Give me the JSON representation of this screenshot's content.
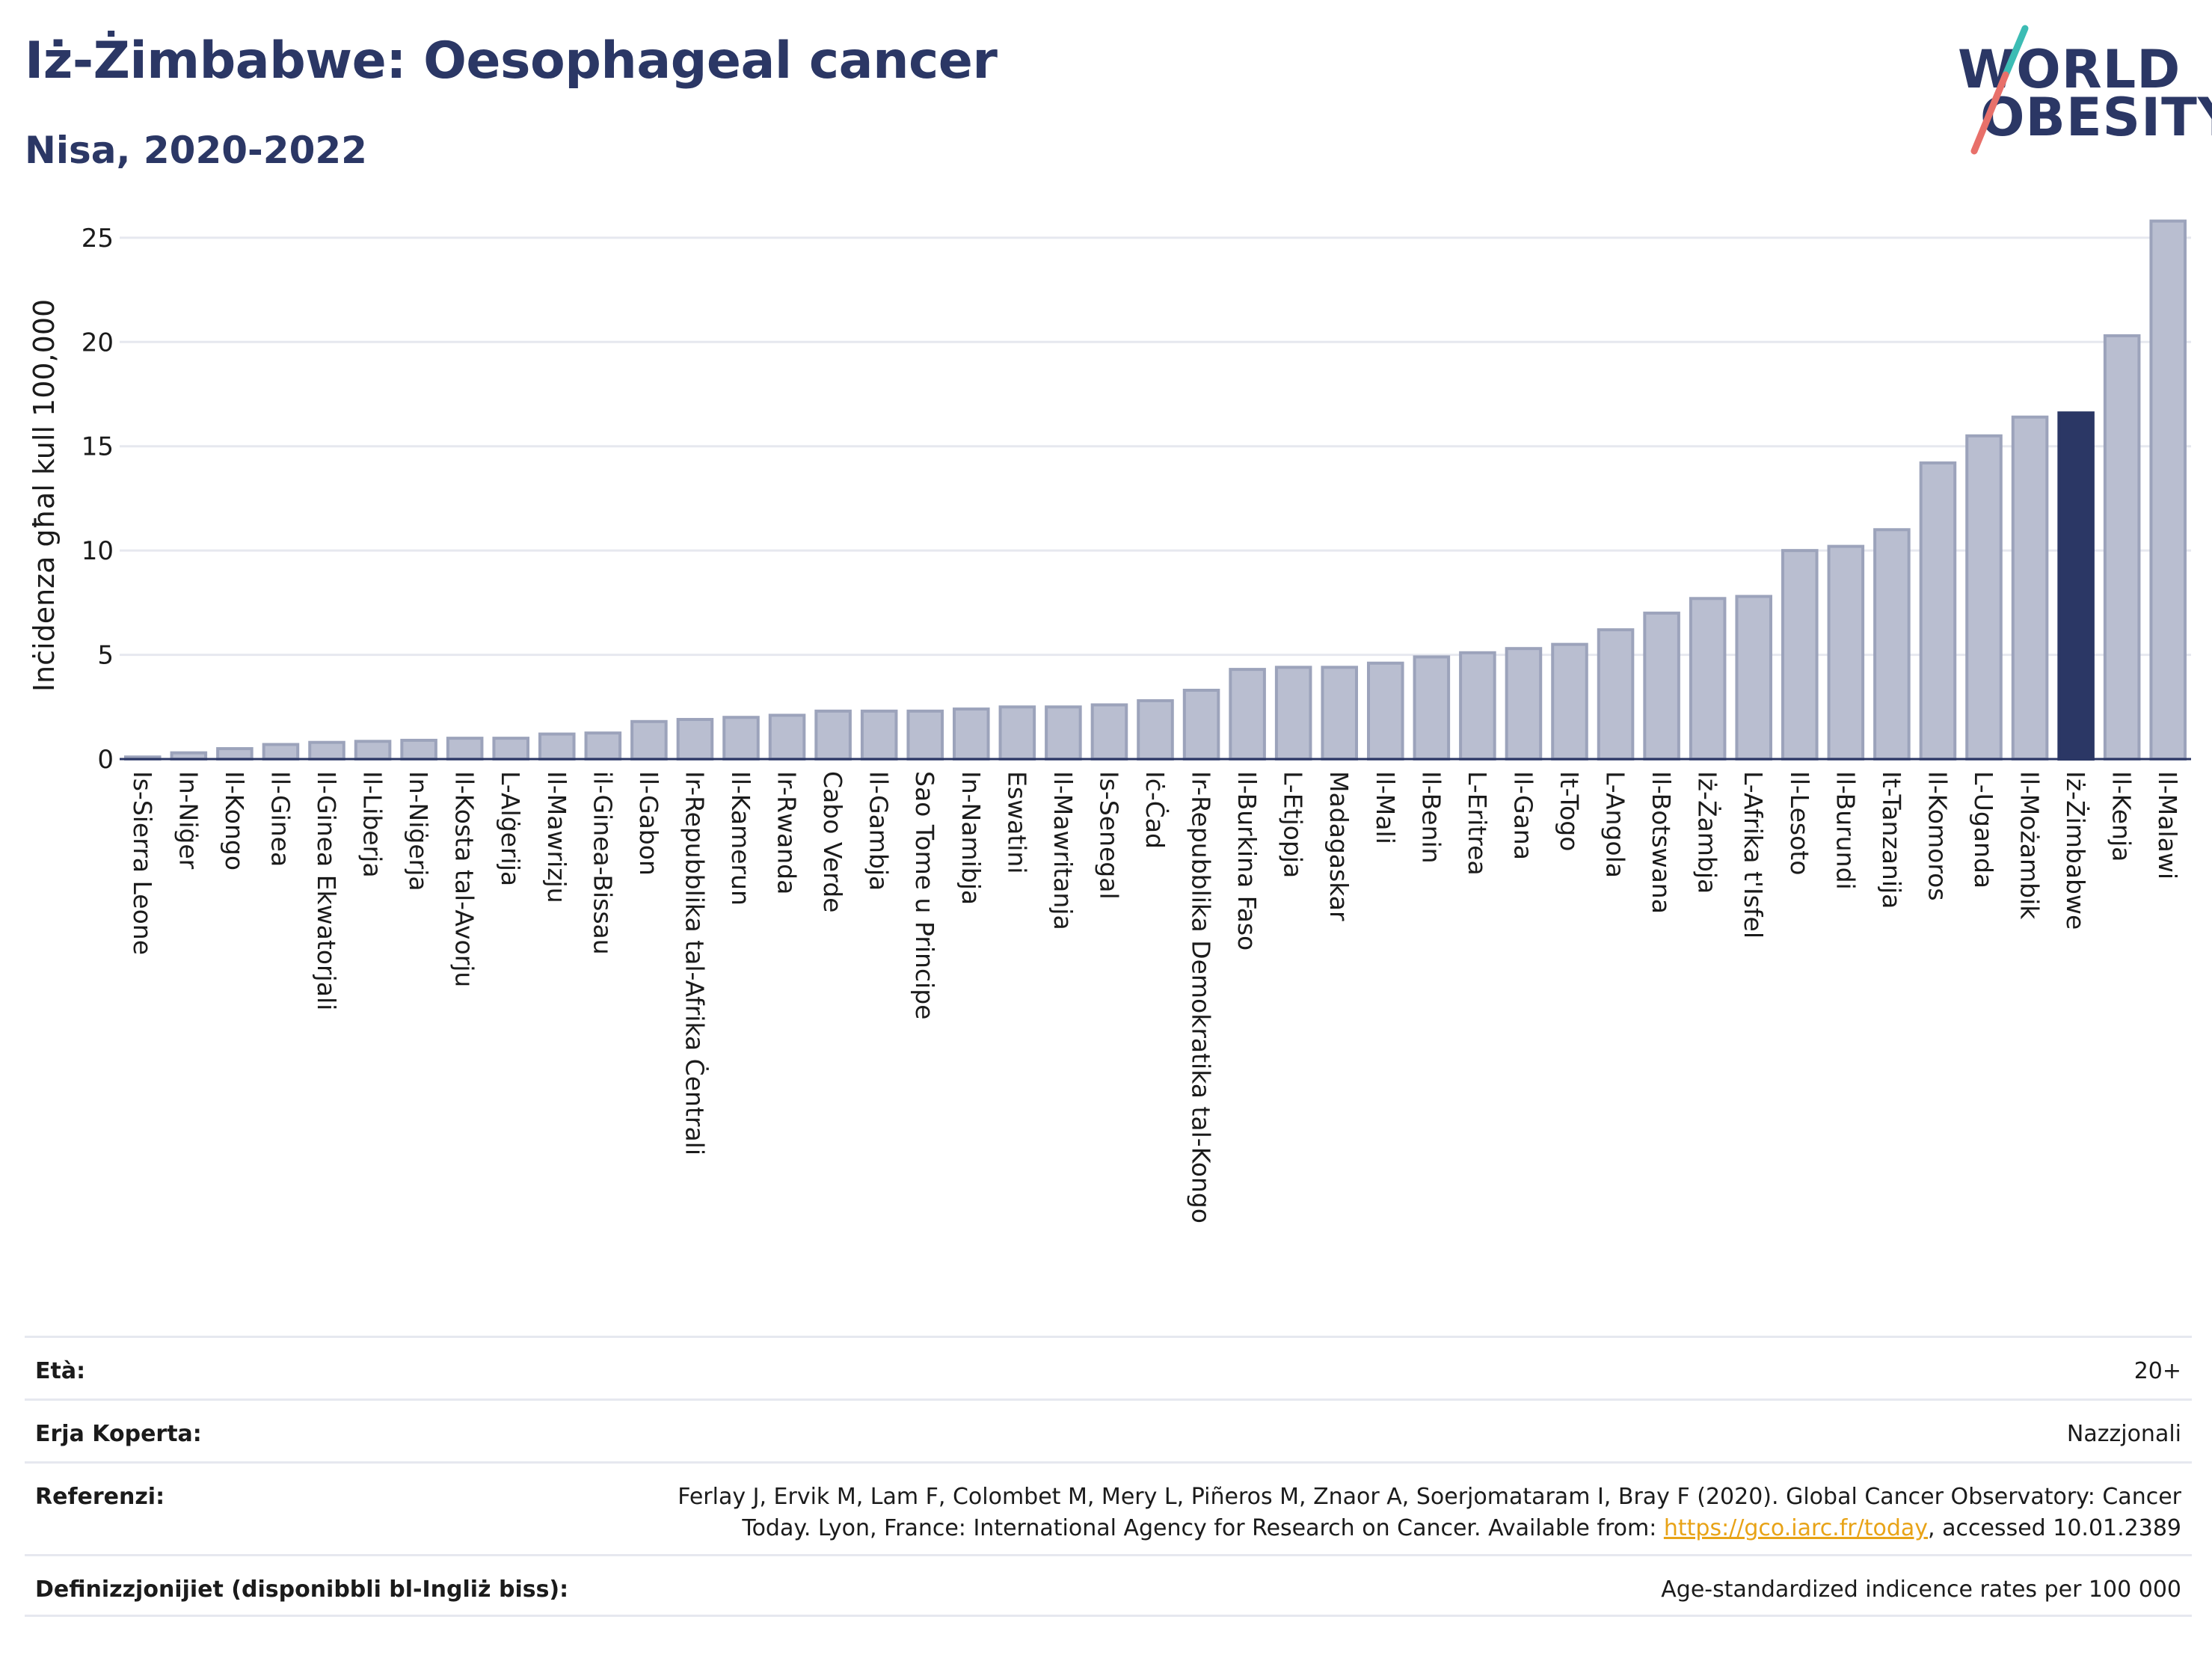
{
  "header": {
    "title": "Iż-Żimbabwe: Oesophageal cancer",
    "subtitle": "Nisa, 2020-2022",
    "logo_line1": "WORLD",
    "logo_line2": "OBESITY"
  },
  "colors": {
    "bar": "#b9bed0",
    "bar_edge": "#9ca3bb",
    "highlight": "#2b3765",
    "text_dark": "#2b3765",
    "grid": "#e6e8ef",
    "logo_teal": "#3cbcb4",
    "logo_coral": "#e8706a"
  },
  "chart_data": {
    "type": "bar",
    "ylabel": "Inċidenza għal kull 100,000",
    "ylim": [
      0,
      26
    ],
    "yticks": [
      0,
      5,
      10,
      15,
      20,
      25
    ],
    "grid": true,
    "highlight": "Iż-Żimbabwe",
    "categories": [
      "Is-Sierra Leone",
      "In-Niġer",
      "Il-Kongo",
      "Il-Ginea",
      "Il-Ginea Ekwatorjali",
      "Il-Liberja",
      "In-Niġerja",
      "Il-Kosta tal-Avorju",
      "L-Alġerija",
      "Il-Mawrizju",
      "il-Ginea-Bissau",
      "Il-Gabon",
      "Ir-Repubblika tal-Afrika Ċentrali",
      "Il-Kamerun",
      "Ir-Rwanda",
      "Cabo Verde",
      "Il-Gambja",
      "Sao Tome u Principe",
      "In-Namibja",
      "Eswatini",
      "Il-Mawritanja",
      "Is-Senegal",
      "Iċ-Ċad",
      "Ir-Repubblika Demokratika tal-Kongo",
      "Il-Burkina Faso",
      "L-Etjopja",
      "Madagaskar",
      "Il-Mali",
      "Il-Benin",
      "L-Eritrea",
      "Il-Gana",
      "It-Togo",
      "L-Angola",
      "Il-Botswana",
      "Iż-Żambja",
      "L-Afrika t'Isfel",
      "Il-Lesoto",
      "Il-Burundi",
      "It-Tanzanija",
      "Il-Komoros",
      "L-Uganda",
      "Il-Możambik",
      "Iż-Żimbabwe",
      "Il-Kenja",
      "Il-Malawi"
    ],
    "values": [
      0.1,
      0.3,
      0.5,
      0.7,
      0.8,
      0.85,
      0.9,
      1.0,
      1.0,
      1.2,
      1.25,
      1.8,
      1.9,
      2.0,
      2.1,
      2.3,
      2.3,
      2.3,
      2.4,
      2.5,
      2.5,
      2.6,
      2.8,
      3.3,
      4.3,
      4.4,
      4.4,
      4.6,
      4.9,
      5.1,
      5.3,
      5.5,
      6.2,
      7.0,
      7.7,
      7.8,
      10.0,
      10.2,
      11.0,
      14.2,
      15.5,
      16.4,
      16.6,
      20.3,
      25.8
    ]
  },
  "footer": {
    "age_label": "Età:",
    "age_value": "20+",
    "area_label": "Erja Koperta:",
    "area_value": "Nazzjonali",
    "ref_label": "Referenzi:",
    "ref_line1": "Ferlay J, Ervik M, Lam F, Colombet M, Mery L, Piñeros M, Znaor A, Soerjomataram I, Bray F (2020). Global Cancer Observatory: Cancer",
    "ref_line2_pre": "Today. Lyon, France: International Agency for Research on Cancer. Available from: ",
    "ref_link": "https://gco.iarc.fr/today",
    "ref_line2_post": ", accessed 10.01.2389",
    "def_label": "Definizzjonijiet (disponibbli bl-Ingliż biss):",
    "def_value": "Age-standardized indicence rates per 100 000"
  }
}
